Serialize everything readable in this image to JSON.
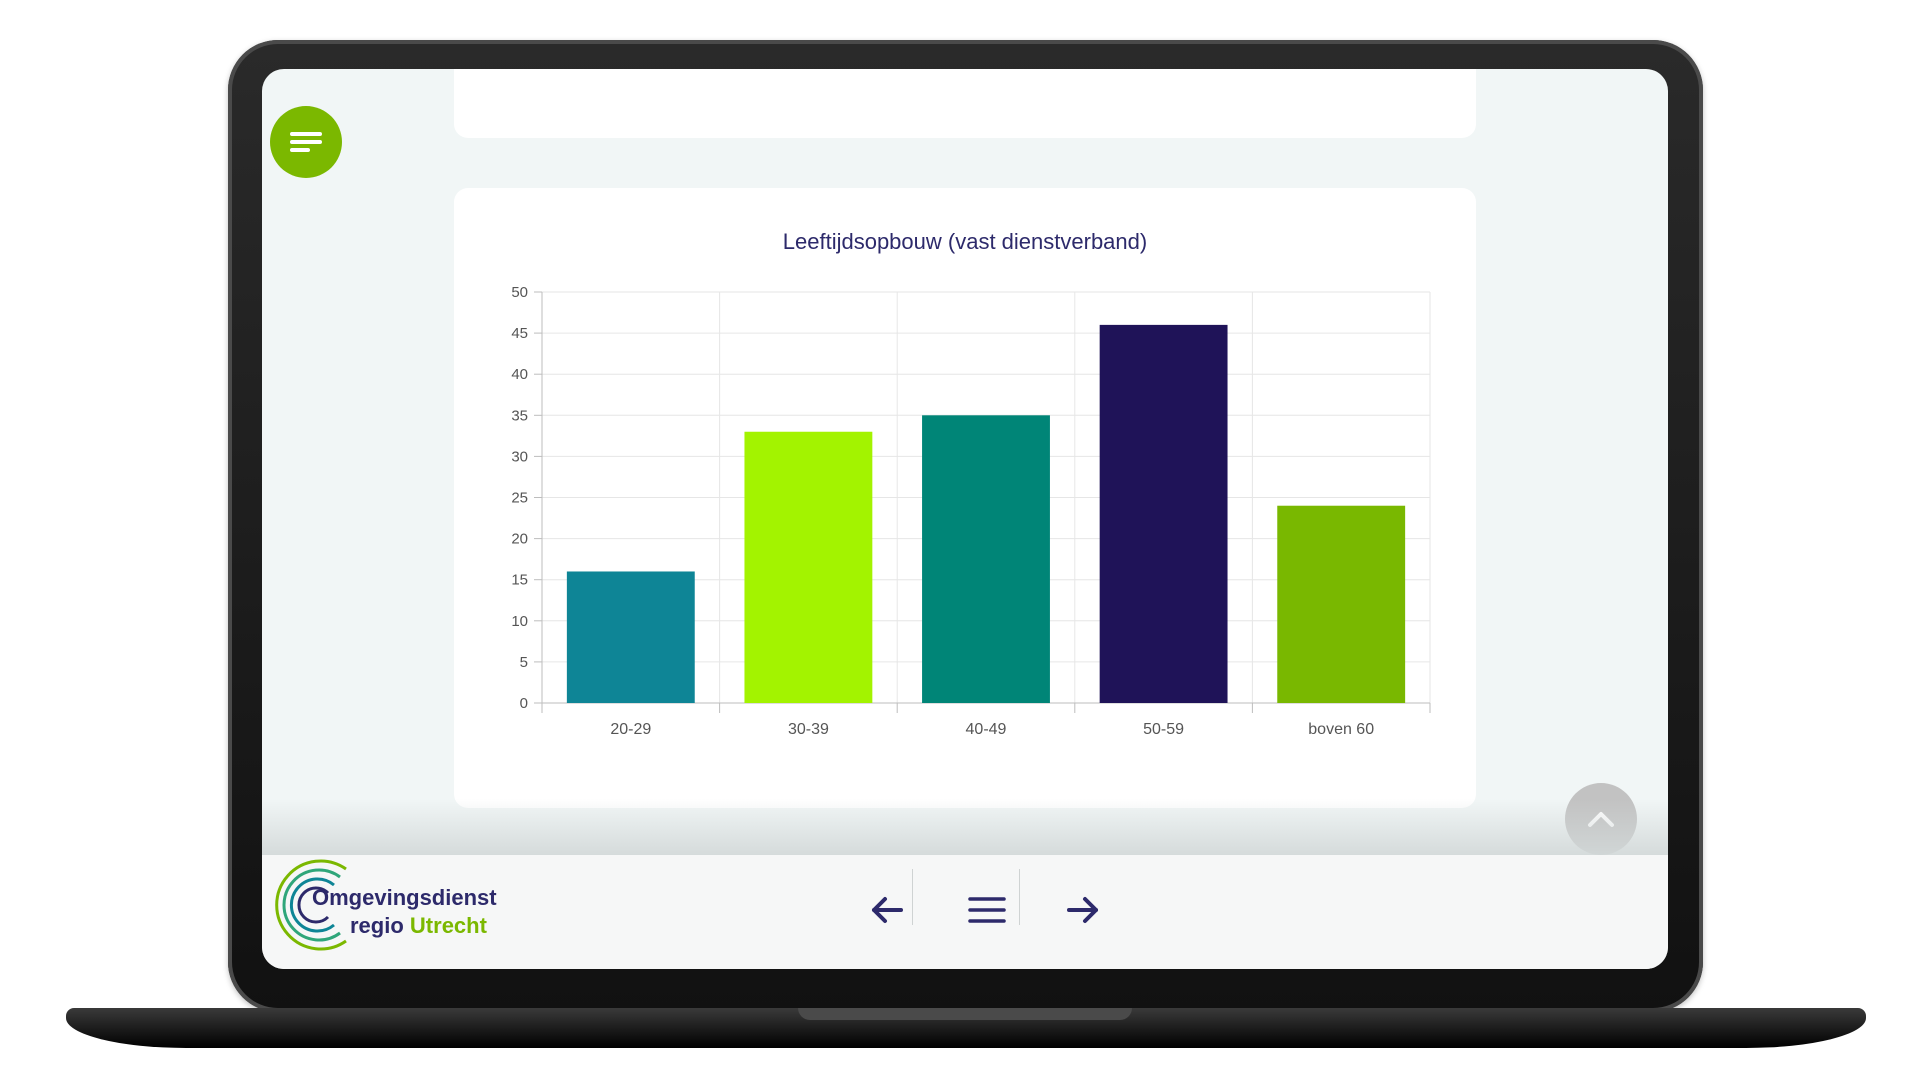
{
  "header": {
    "menu_icon": "menu-lines-icon"
  },
  "chart": {
    "title": "Leeftijdsopbouw (vast dienstverband)"
  },
  "chart_data": {
    "type": "bar",
    "title": "Leeftijdsopbouw (vast dienstverband)",
    "categories": [
      "20-29",
      "30-39",
      "40-49",
      "50-59",
      "boven 60"
    ],
    "values": [
      16,
      33,
      35,
      46,
      24
    ],
    "colors": [
      "#0e8596",
      "#a3f300",
      "#008577",
      "#1f1358",
      "#79b800"
    ],
    "xlabel": "",
    "ylabel": "",
    "ylim": [
      0,
      50
    ],
    "yticks": [
      0,
      5,
      10,
      15,
      20,
      25,
      30,
      35,
      40,
      45,
      50
    ],
    "grid": true
  },
  "logo": {
    "line1": "Omgevingsdienst",
    "line2_a": "regio",
    "line2_b": "Utrecht"
  },
  "footer_nav": {
    "prev_icon": "arrow-left-icon",
    "menu_icon": "hamburger-icon",
    "next_icon": "arrow-right-icon"
  },
  "scroll_top_icon": "chevron-up-icon",
  "colors": {
    "brand_green": "#7bb800",
    "brand_navy": "#2d2a6b"
  }
}
